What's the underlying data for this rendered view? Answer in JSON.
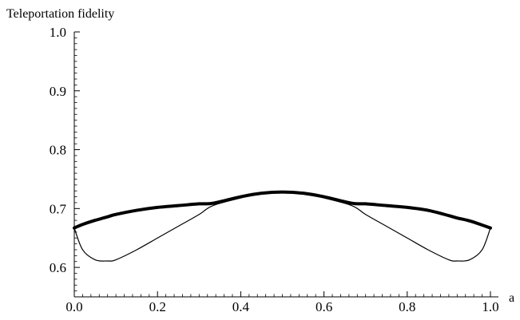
{
  "chart_data": {
    "type": "line",
    "title": "",
    "xlabel": "a",
    "ylabel": "Teleportation fidelity",
    "xlim": [
      0,
      1
    ],
    "ylim": [
      0.55,
      1.0
    ],
    "x_ticks": [
      0.0,
      0.2,
      0.4,
      0.6,
      0.8,
      1.0
    ],
    "x_tick_labels": [
      "0.0",
      "0.2",
      "0.4",
      "0.6",
      "0.8",
      "1.0"
    ],
    "y_ticks": [
      0.6,
      0.7,
      0.8,
      0.9,
      1.0
    ],
    "y_tick_labels": [
      "0.6",
      "0.7",
      "0.8",
      "0.9",
      "1.0"
    ],
    "grid": false,
    "legend": "none",
    "x": [
      0.0,
      0.02,
      0.05,
      0.08,
      0.1,
      0.15,
      0.2,
      0.25,
      0.3,
      0.333,
      0.4,
      0.45,
      0.5,
      0.55,
      0.6,
      0.667,
      0.7,
      0.75,
      0.8,
      0.85,
      0.9,
      0.92,
      0.95,
      0.98,
      1.0
    ],
    "series": [
      {
        "style": "thick",
        "color": "#000000",
        "values": [
          0.667,
          0.673,
          0.68,
          0.686,
          0.69,
          0.697,
          0.702,
          0.705,
          0.708,
          0.709,
          0.72,
          0.726,
          0.728,
          0.726,
          0.72,
          0.709,
          0.708,
          0.705,
          0.702,
          0.697,
          0.688,
          0.684,
          0.679,
          0.672,
          0.667
        ]
      },
      {
        "style": "thin",
        "color": "#000000",
        "values": [
          0.667,
          0.63,
          0.613,
          0.611,
          0.613,
          0.63,
          0.65,
          0.67,
          0.69,
          0.705,
          0.718,
          0.726,
          0.728,
          0.726,
          0.718,
          0.705,
          0.69,
          0.67,
          0.65,
          0.63,
          0.613,
          0.611,
          0.613,
          0.63,
          0.667
        ]
      }
    ]
  }
}
